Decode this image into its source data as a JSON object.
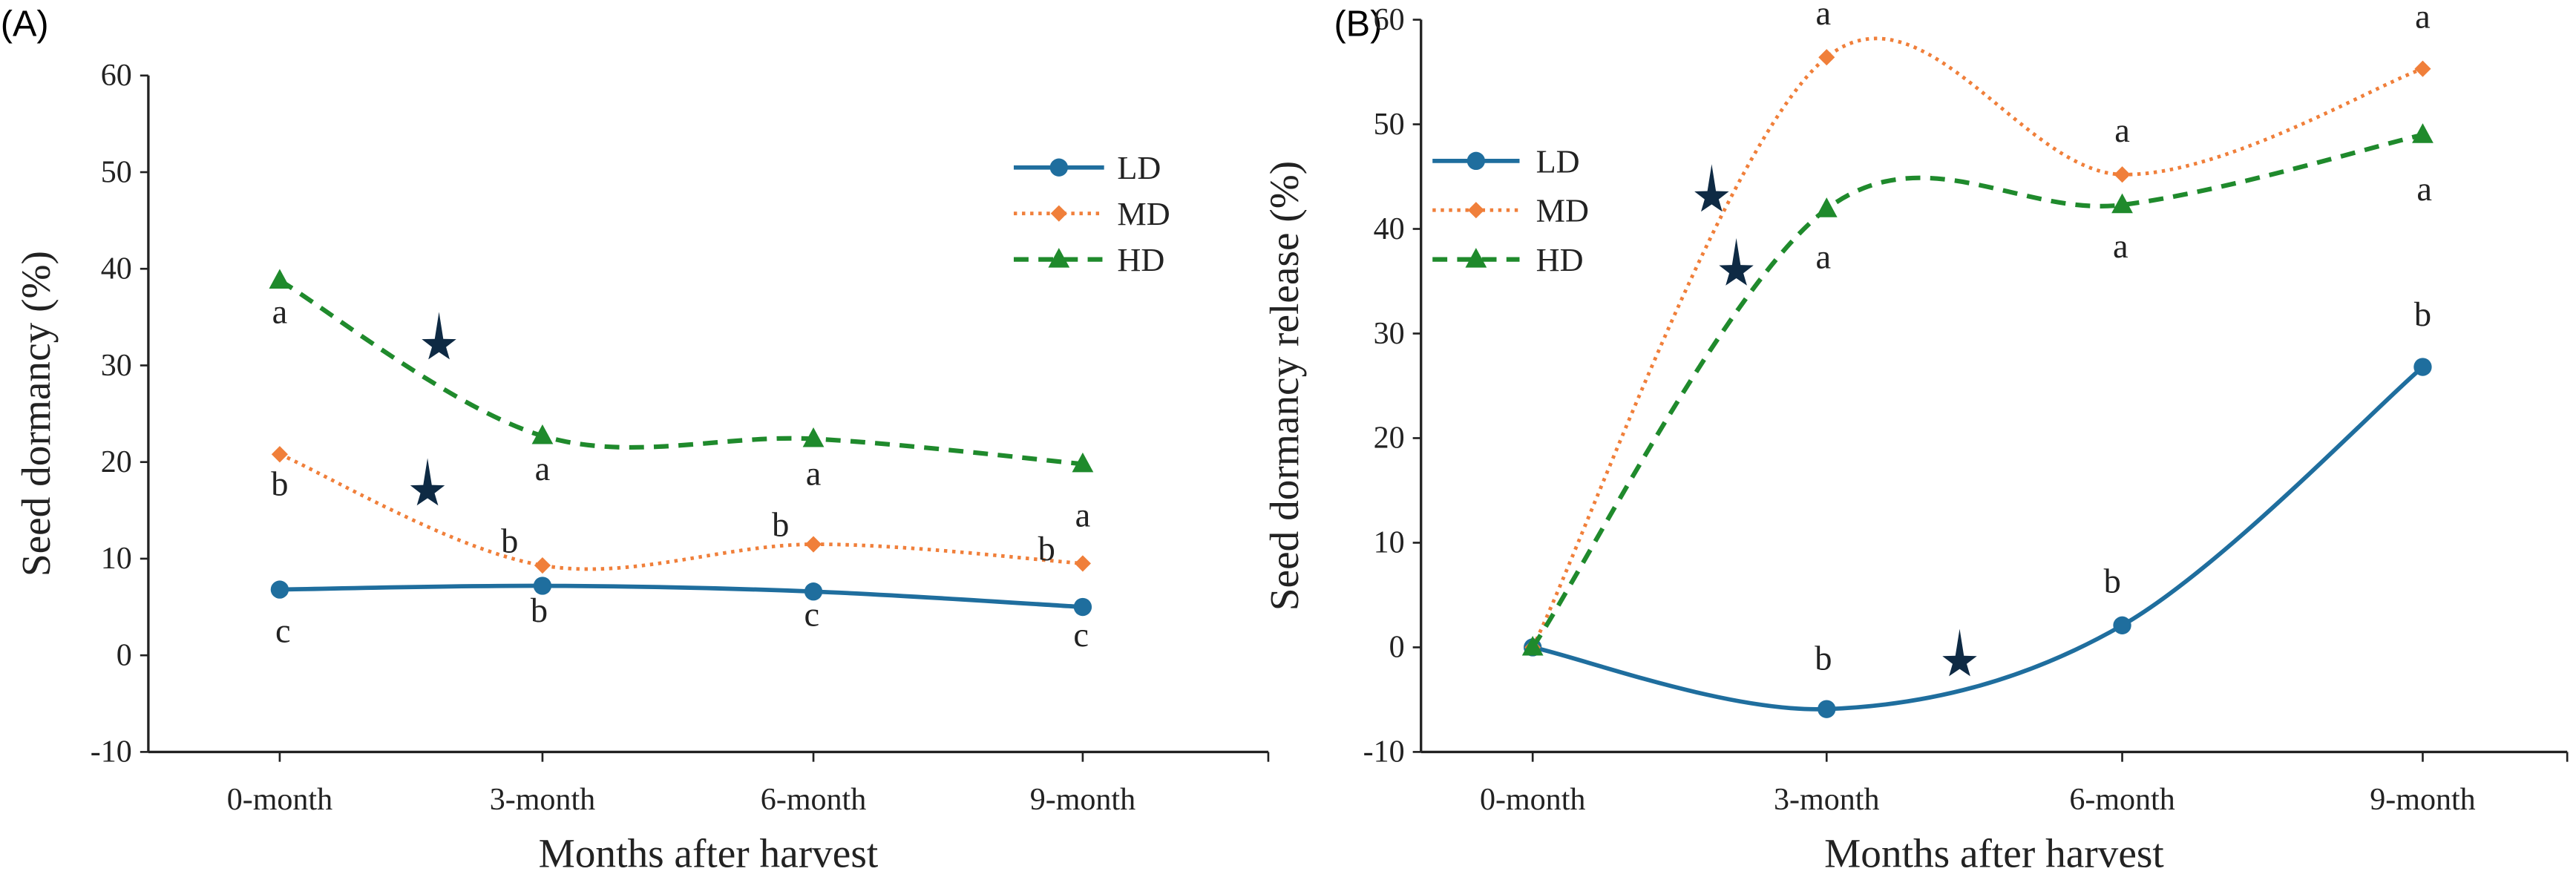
{
  "colors": {
    "LD": "#1F6E9E",
    "MD": "#F07F3A",
    "HD": "#1F8A2C",
    "star": "#0E2A44"
  },
  "chart_data": [
    {
      "panel_label": "(A)",
      "type": "line",
      "categories": [
        "0-month",
        "3-month",
        "6-month",
        "9-month"
      ],
      "xlabel": "Months after harvest",
      "ylabel": "Seed dormancy (%)",
      "ylim": [
        -10,
        60
      ],
      "yticks": [
        -10,
        0,
        10,
        20,
        30,
        40,
        50,
        60
      ],
      "grid": false,
      "legend": "top-right",
      "smoothed": true,
      "series": [
        {
          "name": "LD",
          "values": [
            6.8,
            7.2,
            6.6,
            5.0
          ],
          "marker": "circle",
          "dash": "solid",
          "letters": [
            "c",
            "b",
            "c",
            "c"
          ]
        },
        {
          "name": "MD",
          "values": [
            20.8,
            9.3,
            11.5,
            9.5
          ],
          "marker": "diamond",
          "dash": "dotted",
          "letters": [
            "b",
            "b",
            "b",
            "b"
          ]
        },
        {
          "name": "HD",
          "values": [
            38.8,
            22.7,
            22.4,
            19.8
          ],
          "marker": "triangle",
          "dash": "dashed",
          "letters": [
            "a",
            "a",
            "a",
            "a"
          ]
        }
      ],
      "annotations": [
        "star-between-0-and-3-month-HD",
        "star-between-0-and-3-month-MD"
      ]
    },
    {
      "panel_label": "(B)",
      "type": "line",
      "categories": [
        "0-month",
        "3-month",
        "6-month",
        "9-month"
      ],
      "xlabel": "Months after harvest",
      "ylabel": "Seed dormancy release (%)",
      "ylim": [
        -10,
        60
      ],
      "yticks": [
        -10,
        0,
        10,
        20,
        30,
        40,
        50,
        60
      ],
      "grid": false,
      "legend": "top-left",
      "smoothed": true,
      "series": [
        {
          "name": "LD",
          "values": [
            0,
            -5.9,
            2.1,
            26.8
          ],
          "marker": "circle",
          "dash": "solid",
          "letters": [
            "",
            "b",
            "b",
            "b"
          ]
        },
        {
          "name": "MD",
          "values": [
            0,
            56.4,
            45.2,
            55.3
          ],
          "marker": "diamond",
          "dash": "dotted",
          "letters": [
            "",
            "a",
            "a",
            "a"
          ]
        },
        {
          "name": "HD",
          "values": [
            0,
            41.9,
            42.3,
            49.0
          ],
          "marker": "triangle",
          "dash": "dashed",
          "letters": [
            "",
            "a",
            "a",
            "a"
          ]
        }
      ],
      "annotations": [
        "star-MD-rise",
        "star-HD-rise",
        "star-LD-between-3-and-6-month"
      ]
    }
  ]
}
